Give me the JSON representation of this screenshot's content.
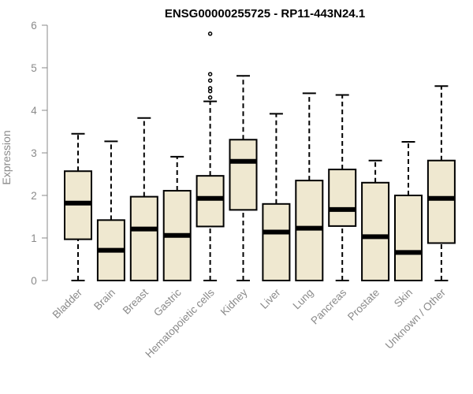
{
  "chart_data": {
    "type": "box",
    "title": "ENSG00000255725 - RP11-443N24.1",
    "xlabel": "",
    "ylabel": "Expression",
    "ylim": [
      0,
      6
    ],
    "yticks": [
      "0",
      "1",
      "2",
      "3",
      "4",
      "5",
      "6"
    ],
    "grid": false,
    "box_fill": "#efe8d0",
    "box_stroke": "#000000",
    "categories": [
      "Bladder",
      "Brain",
      "Breast",
      "Gastric",
      "Hematopoietic cells",
      "Kidney",
      "Liver",
      "Lung",
      "Pancreas",
      "Prostate",
      "Skin",
      "Unknown / Other"
    ],
    "boxes": [
      {
        "min": 0,
        "q1": 0.97,
        "median": 1.82,
        "q3": 2.57,
        "max": 3.45,
        "outliers": []
      },
      {
        "min": 0,
        "q1": 0,
        "median": 0.71,
        "q3": 1.42,
        "max": 3.27,
        "outliers": []
      },
      {
        "min": 0,
        "q1": 0,
        "median": 1.21,
        "q3": 1.97,
        "max": 3.82,
        "outliers": []
      },
      {
        "min": 0,
        "q1": 0,
        "median": 1.06,
        "q3": 2.11,
        "max": 2.91,
        "outliers": []
      },
      {
        "min": 0,
        "q1": 1.27,
        "median": 1.93,
        "q3": 2.46,
        "max": 4.21,
        "outliers": [
          4.3,
          4.45,
          4.52,
          4.7,
          4.85,
          5.8
        ]
      },
      {
        "min": 0,
        "q1": 1.66,
        "median": 2.8,
        "q3": 3.31,
        "max": 4.81,
        "outliers": []
      },
      {
        "min": 0,
        "q1": 0,
        "median": 1.14,
        "q3": 1.8,
        "max": 3.92,
        "outliers": []
      },
      {
        "min": 0,
        "q1": 0,
        "median": 1.23,
        "q3": 2.35,
        "max": 4.4,
        "outliers": []
      },
      {
        "min": 0,
        "q1": 1.28,
        "median": 1.67,
        "q3": 2.61,
        "max": 4.36,
        "outliers": []
      },
      {
        "min": 0,
        "q1": 0,
        "median": 1.03,
        "q3": 2.3,
        "max": 2.82,
        "outliers": []
      },
      {
        "min": 0,
        "q1": 0,
        "median": 0.66,
        "q3": 2.0,
        "max": 3.26,
        "outliers": []
      },
      {
        "min": 0,
        "q1": 0.88,
        "median": 1.93,
        "q3": 2.82,
        "max": 4.57,
        "outliers": []
      }
    ]
  }
}
